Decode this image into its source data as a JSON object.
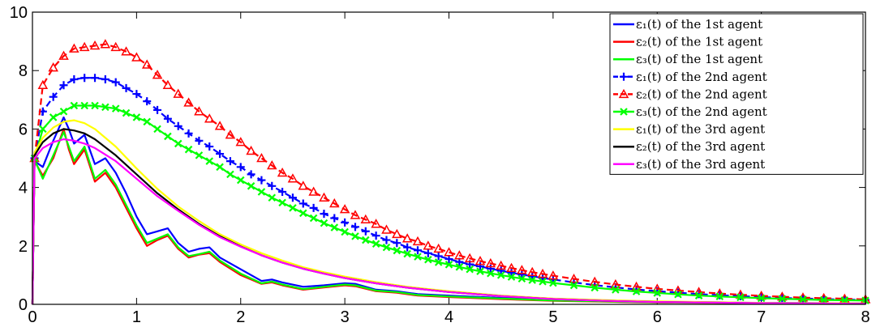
{
  "chart_data": {
    "type": "line",
    "xlim": [
      0,
      8
    ],
    "ylim": [
      0,
      10
    ],
    "xticks": [
      0,
      1,
      2,
      3,
      4,
      5,
      6,
      7,
      8
    ],
    "yticks": [
      0,
      2,
      4,
      6,
      8,
      10
    ],
    "grid": false,
    "legend_position": "top-right",
    "series": [
      {
        "name": "ε₁(t) of the 1st agent",
        "color": "#0000ff",
        "dash": "solid",
        "marker": "none",
        "x": [
          0,
          0.02,
          0.1,
          0.2,
          0.3,
          0.35,
          0.4,
          0.5,
          0.6,
          0.7,
          0.8,
          0.9,
          1.0,
          1.1,
          1.2,
          1.3,
          1.4,
          1.5,
          1.6,
          1.7,
          1.8,
          2.0,
          2.2,
          2.3,
          2.4,
          2.6,
          2.8,
          3.0,
          3.1,
          3.3,
          3.5,
          3.7,
          4.0,
          4.5,
          5.0,
          6.0,
          7.0,
          8.0
        ],
        "y": [
          0,
          4.9,
          4.7,
          5.6,
          6.4,
          6.0,
          5.5,
          5.8,
          4.8,
          5.0,
          4.5,
          3.8,
          3.0,
          2.4,
          2.5,
          2.6,
          2.1,
          1.8,
          1.9,
          1.95,
          1.6,
          1.2,
          0.8,
          0.85,
          0.75,
          0.6,
          0.65,
          0.72,
          0.7,
          0.5,
          0.45,
          0.35,
          0.3,
          0.22,
          0.15,
          0.08,
          0.05,
          0.03
        ]
      },
      {
        "name": "ε₂(t) of the 1st agent",
        "color": "#ff0000",
        "dash": "solid",
        "marker": "none",
        "x": [
          0,
          0.02,
          0.1,
          0.2,
          0.3,
          0.35,
          0.4,
          0.5,
          0.6,
          0.7,
          0.8,
          0.9,
          1.0,
          1.1,
          1.2,
          1.3,
          1.4,
          1.5,
          1.6,
          1.7,
          1.8,
          2.0,
          2.2,
          2.3,
          2.4,
          2.6,
          2.8,
          3.0,
          3.1,
          3.3,
          3.5,
          3.7,
          4.0,
          4.5,
          5.0,
          6.0,
          7.0,
          8.0
        ],
        "y": [
          0,
          4.9,
          4.4,
          5.0,
          6.0,
          5.3,
          4.8,
          5.3,
          4.2,
          4.5,
          4.0,
          3.3,
          2.6,
          2.0,
          2.2,
          2.35,
          1.9,
          1.6,
          1.7,
          1.75,
          1.45,
          1.0,
          0.7,
          0.75,
          0.65,
          0.5,
          0.58,
          0.65,
          0.62,
          0.45,
          0.4,
          0.3,
          0.25,
          0.18,
          0.12,
          0.06,
          0.04,
          0.02
        ]
      },
      {
        "name": "ε₃(t) of the 1st agent",
        "color": "#00ff00",
        "dash": "solid",
        "marker": "none",
        "x": [
          0,
          0.02,
          0.1,
          0.2,
          0.3,
          0.35,
          0.4,
          0.5,
          0.6,
          0.7,
          0.8,
          0.9,
          1.0,
          1.1,
          1.2,
          1.3,
          1.4,
          1.5,
          1.6,
          1.7,
          1.8,
          2.0,
          2.2,
          2.3,
          2.4,
          2.6,
          2.8,
          3.0,
          3.1,
          3.3,
          3.5,
          3.7,
          4.0,
          4.5,
          5.0,
          6.0,
          7.0,
          8.0
        ],
        "y": [
          0,
          4.95,
          4.3,
          5.1,
          5.9,
          5.4,
          4.9,
          5.4,
          4.3,
          4.6,
          4.1,
          3.4,
          2.7,
          2.1,
          2.25,
          2.4,
          1.95,
          1.65,
          1.72,
          1.8,
          1.5,
          1.05,
          0.72,
          0.78,
          0.68,
          0.52,
          0.6,
          0.68,
          0.65,
          0.47,
          0.42,
          0.32,
          0.27,
          0.2,
          0.13,
          0.07,
          0.04,
          0.02
        ]
      },
      {
        "name": "ε₁(t) of the 2nd agent",
        "color": "#0000ff",
        "dash": "dashed",
        "marker": "plus",
        "x": [
          0,
          0.02,
          0.1,
          0.2,
          0.3,
          0.4,
          0.5,
          0.6,
          0.7,
          0.8,
          0.9,
          1.0,
          1.1,
          1.2,
          1.3,
          1.4,
          1.5,
          1.6,
          1.7,
          1.8,
          1.9,
          2.0,
          2.1,
          2.2,
          2.3,
          2.4,
          2.5,
          2.6,
          2.7,
          2.8,
          2.9,
          3.0,
          3.1,
          3.2,
          3.3,
          3.4,
          3.5,
          3.6,
          3.7,
          3.8,
          3.9,
          4.0,
          4.1,
          4.2,
          4.3,
          4.4,
          4.5,
          4.6,
          4.7,
          4.8,
          4.9,
          5.0,
          5.2,
          5.4,
          5.6,
          5.8,
          6.0,
          6.2,
          6.4,
          6.6,
          6.8,
          7.0,
          7.2,
          7.4,
          7.6,
          7.8,
          8.0
        ],
        "y": [
          0,
          5.0,
          6.6,
          7.1,
          7.5,
          7.7,
          7.75,
          7.75,
          7.7,
          7.6,
          7.4,
          7.2,
          6.95,
          6.65,
          6.35,
          6.1,
          5.85,
          5.6,
          5.4,
          5.15,
          4.9,
          4.7,
          4.45,
          4.25,
          4.05,
          3.85,
          3.65,
          3.45,
          3.3,
          3.1,
          2.95,
          2.8,
          2.65,
          2.5,
          2.35,
          2.2,
          2.1,
          1.95,
          1.85,
          1.75,
          1.65,
          1.55,
          1.45,
          1.37,
          1.3,
          1.22,
          1.15,
          1.08,
          1.02,
          0.96,
          0.9,
          0.85,
          0.75,
          0.66,
          0.58,
          0.51,
          0.45,
          0.4,
          0.35,
          0.31,
          0.28,
          0.25,
          0.22,
          0.2,
          0.18,
          0.16,
          0.15
        ]
      },
      {
        "name": "ε₂(t) of the 2nd agent",
        "color": "#ff0000",
        "dash": "dashed",
        "marker": "triangle",
        "x": [
          0,
          0.02,
          0.1,
          0.2,
          0.3,
          0.4,
          0.5,
          0.6,
          0.7,
          0.8,
          0.9,
          1.0,
          1.1,
          1.2,
          1.3,
          1.4,
          1.5,
          1.6,
          1.7,
          1.8,
          1.9,
          2.0,
          2.1,
          2.2,
          2.3,
          2.4,
          2.5,
          2.6,
          2.7,
          2.8,
          2.9,
          3.0,
          3.1,
          3.2,
          3.3,
          3.4,
          3.5,
          3.6,
          3.7,
          3.8,
          3.9,
          4.0,
          4.1,
          4.2,
          4.3,
          4.4,
          4.5,
          4.6,
          4.7,
          4.8,
          4.9,
          5.0,
          5.2,
          5.4,
          5.6,
          5.8,
          6.0,
          6.2,
          6.4,
          6.6,
          6.8,
          7.0,
          7.2,
          7.4,
          7.6,
          7.8,
          8.0
        ],
        "y": [
          0,
          5.0,
          7.5,
          8.1,
          8.5,
          8.75,
          8.8,
          8.85,
          8.9,
          8.8,
          8.65,
          8.45,
          8.2,
          7.85,
          7.5,
          7.2,
          6.9,
          6.6,
          6.35,
          6.1,
          5.8,
          5.55,
          5.25,
          5.0,
          4.75,
          4.5,
          4.3,
          4.05,
          3.85,
          3.65,
          3.45,
          3.25,
          3.05,
          2.9,
          2.75,
          2.55,
          2.4,
          2.25,
          2.15,
          2.0,
          1.9,
          1.78,
          1.67,
          1.57,
          1.48,
          1.4,
          1.32,
          1.24,
          1.17,
          1.1,
          1.04,
          0.98,
          0.87,
          0.77,
          0.68,
          0.6,
          0.53,
          0.47,
          0.42,
          0.37,
          0.33,
          0.29,
          0.26,
          0.23,
          0.21,
          0.19,
          0.17
        ]
      },
      {
        "name": "ε₃(t) of the 2nd agent",
        "color": "#00ff00",
        "dash": "solid",
        "marker": "x",
        "x": [
          0,
          0.02,
          0.1,
          0.2,
          0.3,
          0.4,
          0.5,
          0.6,
          0.7,
          0.8,
          0.9,
          1.0,
          1.1,
          1.2,
          1.3,
          1.4,
          1.5,
          1.6,
          1.7,
          1.8,
          1.9,
          2.0,
          2.1,
          2.2,
          2.3,
          2.4,
          2.5,
          2.6,
          2.7,
          2.8,
          2.9,
          3.0,
          3.1,
          3.2,
          3.3,
          3.4,
          3.5,
          3.6,
          3.7,
          3.8,
          3.9,
          4.0,
          4.1,
          4.2,
          4.3,
          4.4,
          4.5,
          4.6,
          4.7,
          4.8,
          4.9,
          5.0,
          5.2,
          5.4,
          5.6,
          5.8,
          6.0,
          6.2,
          6.4,
          6.6,
          6.8,
          7.0,
          7.2,
          7.4,
          7.6,
          7.8,
          8.0
        ],
        "y": [
          0,
          5.0,
          6.0,
          6.4,
          6.6,
          6.8,
          6.8,
          6.8,
          6.75,
          6.7,
          6.55,
          6.4,
          6.25,
          6.0,
          5.75,
          5.5,
          5.3,
          5.1,
          4.9,
          4.7,
          4.45,
          4.25,
          4.05,
          3.85,
          3.65,
          3.48,
          3.3,
          3.12,
          2.95,
          2.78,
          2.63,
          2.48,
          2.33,
          2.2,
          2.07,
          1.95,
          1.84,
          1.73,
          1.63,
          1.53,
          1.44,
          1.36,
          1.28,
          1.2,
          1.13,
          1.06,
          1.0,
          0.94,
          0.88,
          0.83,
          0.78,
          0.73,
          0.65,
          0.57,
          0.5,
          0.44,
          0.39,
          0.34,
          0.3,
          0.27,
          0.24,
          0.21,
          0.19,
          0.17,
          0.15,
          0.14,
          0.13
        ]
      },
      {
        "name": "ε₁(t) of the 3rd agent",
        "color": "#ffff00",
        "dash": "solid",
        "marker": "none",
        "x": [
          0,
          0.02,
          0.1,
          0.2,
          0.3,
          0.4,
          0.5,
          0.6,
          0.8,
          1.0,
          1.2,
          1.4,
          1.6,
          1.8,
          2.0,
          2.2,
          2.4,
          2.6,
          2.8,
          3.0,
          3.3,
          3.6,
          4.0,
          4.5,
          5.0,
          5.5,
          6.0,
          7.0,
          8.0
        ],
        "y": [
          0,
          5.2,
          5.7,
          6.05,
          6.25,
          6.3,
          6.2,
          6.0,
          5.4,
          4.65,
          3.95,
          3.35,
          2.85,
          2.4,
          2.05,
          1.75,
          1.5,
          1.27,
          1.1,
          0.95,
          0.76,
          0.6,
          0.45,
          0.3,
          0.2,
          0.14,
          0.1,
          0.05,
          0.03
        ]
      },
      {
        "name": "ε₂(t) of the 3rd agent",
        "color": "#000000",
        "dash": "solid",
        "marker": "none",
        "x": [
          0,
          0.02,
          0.1,
          0.2,
          0.3,
          0.4,
          0.5,
          0.6,
          0.8,
          1.0,
          1.2,
          1.4,
          1.6,
          1.8,
          2.0,
          2.2,
          2.4,
          2.6,
          2.8,
          3.0,
          3.3,
          3.6,
          4.0,
          4.5,
          5.0,
          5.5,
          6.0,
          7.0,
          8.0
        ],
        "y": [
          0,
          5.1,
          5.55,
          5.85,
          6.0,
          5.95,
          5.85,
          5.65,
          5.1,
          4.45,
          3.8,
          3.25,
          2.75,
          2.33,
          1.98,
          1.68,
          1.43,
          1.22,
          1.05,
          0.9,
          0.72,
          0.57,
          0.42,
          0.28,
          0.18,
          0.12,
          0.08,
          0.04,
          0.02
        ]
      },
      {
        "name": "ε₃(t) of the 3rd agent",
        "color": "#ff00ff",
        "dash": "solid",
        "marker": "none",
        "x": [
          0,
          0.02,
          0.1,
          0.2,
          0.3,
          0.4,
          0.5,
          0.6,
          0.8,
          1.0,
          1.2,
          1.4,
          1.6,
          1.8,
          2.0,
          2.2,
          2.4,
          2.6,
          2.8,
          3.0,
          3.3,
          3.6,
          4.0,
          4.5,
          5.0,
          5.5,
          6.0,
          7.0,
          8.0
        ],
        "y": [
          0,
          5.0,
          5.35,
          5.55,
          5.65,
          5.6,
          5.5,
          5.35,
          4.9,
          4.3,
          3.7,
          3.2,
          2.72,
          2.3,
          1.97,
          1.68,
          1.43,
          1.22,
          1.05,
          0.9,
          0.72,
          0.57,
          0.42,
          0.28,
          0.18,
          0.12,
          0.08,
          0.04,
          0.02
        ]
      }
    ]
  }
}
